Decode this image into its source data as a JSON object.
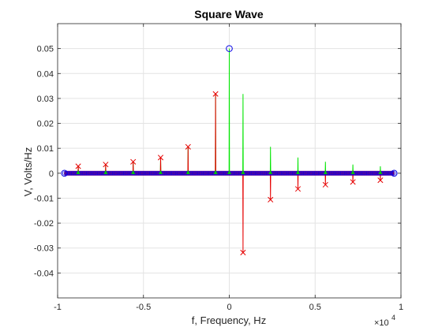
{
  "chart_data": {
    "type": "line",
    "title": "Square Wave",
    "xlabel": "f, Frequency, Hz",
    "ylabel": "V, Volts/Hz",
    "x_exponent_label": "×10",
    "x_exponent": "4",
    "xlim": [
      -10000,
      10000
    ],
    "ylim": [
      -0.05,
      0.06
    ],
    "grid": true,
    "x_ticks": [
      {
        "value": -10000,
        "label": "-1"
      },
      {
        "value": -5000,
        "label": "-0.5"
      },
      {
        "value": 0,
        "label": "0"
      },
      {
        "value": 5000,
        "label": "0.5"
      },
      {
        "value": 10000,
        "label": "1"
      }
    ],
    "y_ticks": [
      {
        "value": -0.04,
        "label": "-0.04"
      },
      {
        "value": -0.03,
        "label": "-0.03"
      },
      {
        "value": -0.02,
        "label": "-0.02"
      },
      {
        "value": -0.01,
        "label": "-0.01"
      },
      {
        "value": 0,
        "label": "0"
      },
      {
        "value": 0.01,
        "label": "0.01"
      },
      {
        "value": 0.02,
        "label": "0.02"
      },
      {
        "value": 0.03,
        "label": "0.03"
      },
      {
        "value": 0.04,
        "label": "0.04"
      },
      {
        "value": 0.05,
        "label": "0.05"
      }
    ],
    "harmonic_frequencies": [
      -8800,
      -7200,
      -5600,
      -4000,
      -2400,
      -800,
      0,
      800,
      2400,
      4000,
      5600,
      7200,
      8800
    ],
    "series": [
      {
        "marker": "line",
        "color": "#00e600",
        "x": [
          -8800,
          -7200,
          -5600,
          -4000,
          -2400,
          -800,
          0,
          800,
          2400,
          4000,
          5600,
          7200,
          8800
        ],
        "values": [
          0.0028,
          0.0035,
          0.0046,
          0.0063,
          0.0106,
          0.0318,
          0.05,
          0.0318,
          0.0106,
          0.0063,
          0.0046,
          0.0035,
          0.0028
        ]
      },
      {
        "marker": "line",
        "color": "#e60000",
        "x": [
          -8800,
          -7200,
          -5600,
          -4000,
          -2400,
          -800,
          0,
          800,
          2400,
          4000,
          5600,
          7200,
          8800
        ],
        "values": [
          0.0028,
          0.0035,
          0.0046,
          0.0063,
          0.0106,
          0.0318,
          0,
          -0.0318,
          -0.0106,
          -0.0063,
          -0.0046,
          -0.0035,
          -0.0028
        ]
      },
      {
        "marker": "x",
        "color": "#e60000",
        "x": [
          -8800,
          -7200,
          -5600,
          -4000,
          -2400,
          -800,
          800,
          2400,
          4000,
          5600,
          7200,
          8800
        ],
        "values": [
          0.0028,
          0.0035,
          0.0046,
          0.0063,
          0.0106,
          0.0318,
          -0.0318,
          -0.0106,
          -0.0063,
          -0.0046,
          -0.0035,
          -0.0028
        ]
      },
      {
        "marker": "circle",
        "color": "#0000e6",
        "x": [
          0,
          -9600,
          9600
        ],
        "values": [
          0.05,
          0,
          0
        ]
      },
      {
        "marker": "baseline",
        "color": "#800080",
        "x": [
          -9600,
          9600
        ],
        "values": [
          0,
          0
        ]
      }
    ]
  }
}
